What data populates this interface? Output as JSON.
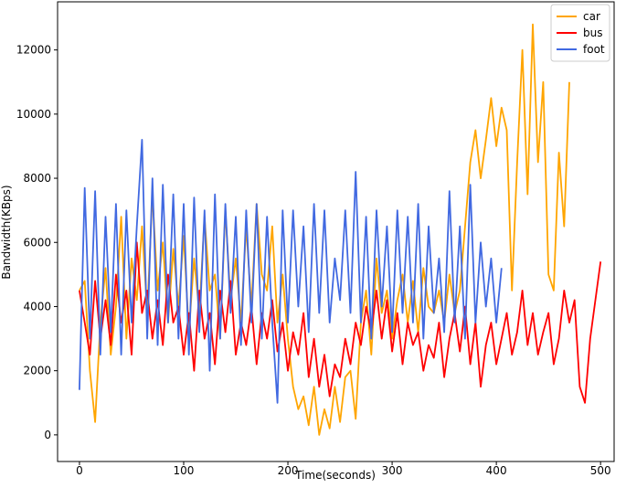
{
  "chart_data": {
    "type": "line",
    "x_label": "Time(seconds)",
    "y_label": "Bandwidth(KBps)",
    "xlim": [
      -21,
      513
    ],
    "ylim": [
      -830,
      13500
    ],
    "xticks": [
      0,
      100,
      200,
      300,
      400,
      500
    ],
    "yticks": [
      0,
      2000,
      4000,
      6000,
      8000,
      10000,
      12000
    ],
    "legend": "upper right",
    "x": [
      0,
      5,
      10,
      15,
      20,
      25,
      30,
      35,
      40,
      45,
      50,
      55,
      60,
      65,
      70,
      75,
      80,
      85,
      90,
      95,
      100,
      105,
      110,
      115,
      120,
      125,
      130,
      135,
      140,
      145,
      150,
      155,
      160,
      165,
      170,
      175,
      180,
      185,
      190,
      195,
      200,
      205,
      210,
      215,
      220,
      225,
      230,
      235,
      240,
      245,
      250,
      255,
      260,
      265,
      270,
      275,
      280,
      285,
      290,
      295,
      300,
      305,
      310,
      315,
      320,
      325,
      330,
      335,
      340,
      345,
      350,
      355,
      360,
      365,
      370,
      375,
      380,
      385,
      390,
      395,
      400,
      405,
      410,
      415,
      420,
      425,
      430,
      435,
      440,
      445,
      450,
      455,
      460,
      465,
      470,
      475,
      480,
      485,
      490,
      495,
      500
    ],
    "series": [
      {
        "name": "car",
        "color": "#ffa500",
        "values": [
          4500,
          4800,
          2000,
          400,
          3500,
          5200,
          2500,
          4000,
          6800,
          3000,
          5500,
          4200,
          6500,
          3800,
          7500,
          4500,
          6000,
          3500,
          5800,
          4000,
          6200,
          3200,
          5500,
          3800,
          6800,
          4500,
          5000,
          3000,
          7000,
          4200,
          5500,
          3500,
          6500,
          4000,
          7200,
          5000,
          4500,
          6500,
          3500,
          5000,
          3000,
          1500,
          800,
          1200,
          300,
          1500,
          0,
          800,
          200,
          1500,
          400,
          1800,
          2000,
          500,
          3500,
          4500,
          2500,
          5500,
          3800,
          4500,
          3000,
          4200,
          5000,
          3500,
          4800,
          3200,
          5200,
          4000,
          3800,
          4500,
          3500,
          5000,
          3800,
          4500,
          6500,
          8500,
          9500,
          8000,
          9200,
          10500,
          9000,
          10200,
          9500,
          4500,
          8500,
          12000,
          7500,
          12800,
          8500,
          11000,
          5000,
          4500,
          8800,
          6500,
          11000,
          null,
          null,
          null,
          null,
          null,
          null
        ]
      },
      {
        "name": "bus",
        "color": "#ff0000",
        "values": [
          4500,
          3500,
          2500,
          4800,
          3000,
          4200,
          2800,
          5000,
          3500,
          4500,
          2500,
          6000,
          3800,
          4500,
          3000,
          4200,
          2800,
          5000,
          3500,
          4000,
          2500,
          3800,
          2000,
          4500,
          3000,
          3800,
          2200,
          4500,
          3200,
          4800,
          2500,
          3500,
          2800,
          4000,
          2200,
          3800,
          3000,
          4200,
          2600,
          3500,
          2000,
          3200,
          2500,
          3800,
          1800,
          3000,
          1500,
          2500,
          1200,
          2200,
          1800,
          3000,
          2200,
          3500,
          2800,
          4000,
          3200,
          4500,
          3000,
          4200,
          2600,
          3800,
          2200,
          3500,
          2800,
          3200,
          2000,
          2800,
          2400,
          3500,
          1800,
          3000,
          3800,
          2600,
          4000,
          2200,
          3500,
          1500,
          2800,
          3500,
          2200,
          3000,
          3800,
          2500,
          3200,
          4500,
          2800,
          3800,
          2500,
          3200,
          3800,
          2200,
          3000,
          4500,
          3500,
          4200,
          1500,
          1000,
          3000,
          4200,
          5400
        ]
      },
      {
        "name": "foot",
        "color": "#4169e1",
        "values": [
          1400,
          7700,
          3000,
          7600,
          2500,
          6800,
          3200,
          7200,
          2500,
          7000,
          3500,
          6500,
          9200,
          3000,
          8000,
          2800,
          7800,
          3500,
          7500,
          3000,
          7200,
          2500,
          7400,
          3200,
          7000,
          2000,
          7500,
          3000,
          7200,
          3800,
          6800,
          2800,
          7000,
          3500,
          7200,
          3000,
          6800,
          3500,
          1000,
          7000,
          3500,
          7000,
          4000,
          6500,
          3200,
          7200,
          3800,
          7000,
          3500,
          5500,
          4200,
          7000,
          3800,
          8200,
          3500,
          6800,
          3000,
          7000,
          4000,
          6500,
          3200,
          7000,
          3800,
          6800,
          3500,
          7200,
          3000,
          6500,
          3800,
          5500,
          3200,
          7600,
          3500,
          6500,
          3000,
          7800,
          3500,
          6000,
          4000,
          5500,
          3500,
          5200,
          null,
          null,
          null,
          null,
          null,
          null,
          null,
          null,
          null,
          null,
          null,
          null,
          null,
          null,
          null,
          null,
          null,
          null,
          null
        ]
      }
    ]
  }
}
